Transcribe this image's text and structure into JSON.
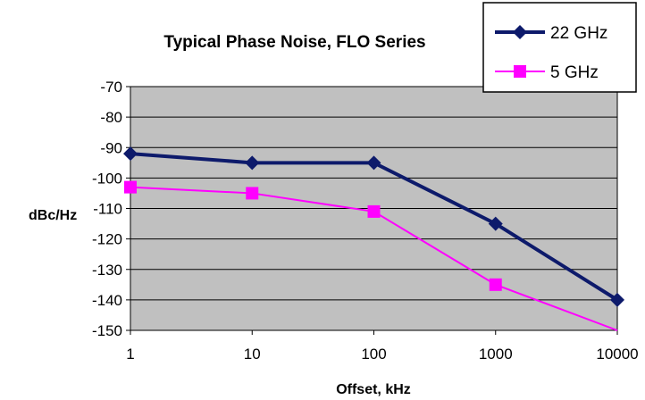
{
  "chart_data": {
    "type": "line",
    "title": "Typical Phase Noise, FLO Series",
    "xlabel": "Offset, kHz",
    "ylabel": "dBc/Hz",
    "x_scale": "log",
    "x": [
      1,
      10,
      100,
      1000,
      10000
    ],
    "x_tick_labels": [
      "1",
      "10",
      "100",
      "1000",
      "10000"
    ],
    "ylim": [
      -150,
      -70
    ],
    "y_ticks": [
      -70,
      -80,
      -90,
      -100,
      -110,
      -120,
      -130,
      -140,
      -150
    ],
    "grid": "horizontal",
    "plot_background": "#c0c0c0",
    "legend_position": "top-right",
    "series": [
      {
        "name": "22 GHz",
        "color": "#0d1a6b",
        "marker": "diamond",
        "values": [
          -92,
          -95,
          -95,
          -115,
          -140
        ]
      },
      {
        "name": "5 GHz",
        "color": "#ff00ff",
        "marker": "square",
        "values": [
          -103,
          -105,
          -111,
          -135,
          -152
        ]
      }
    ]
  }
}
